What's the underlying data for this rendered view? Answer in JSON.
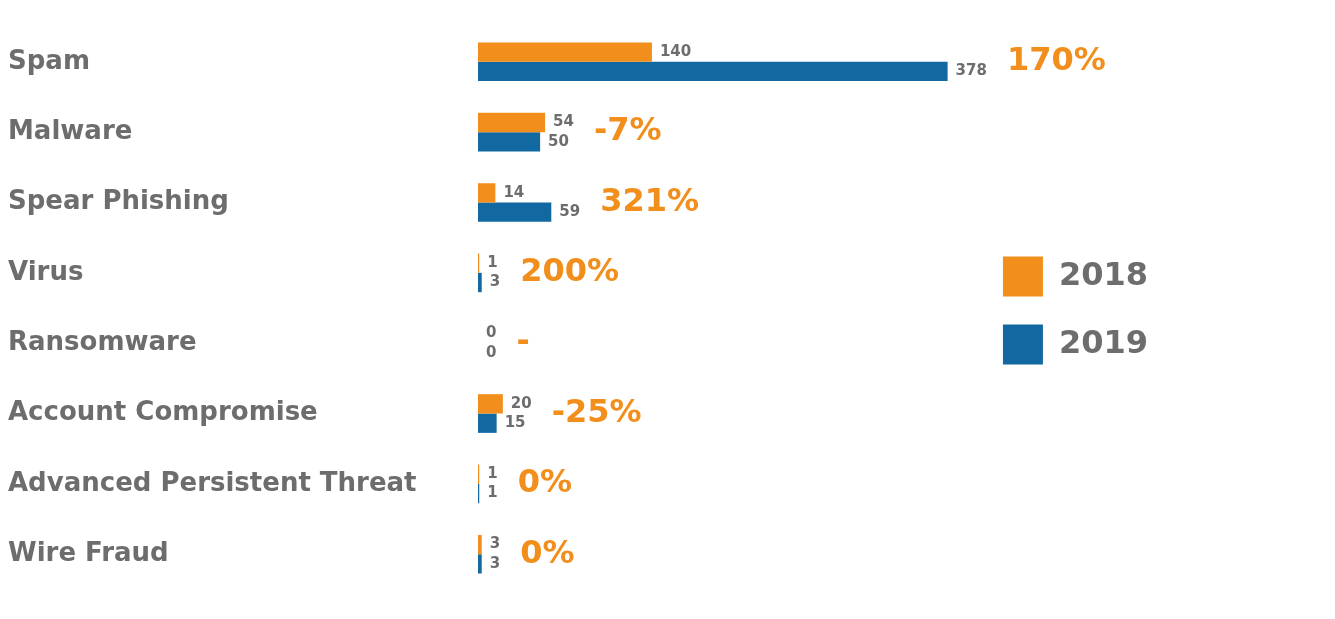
{
  "chart_data": {
    "type": "bar",
    "orientation": "horizontal",
    "categories": [
      "Spam",
      "Malware",
      "Spear Phishing",
      "Virus",
      "Ransomware",
      "Account Compromise",
      "Advanced Persistent Threat",
      "Wire Fraud"
    ],
    "series": [
      {
        "name": "2018",
        "color": "#f28e1c",
        "values": [
          140,
          54,
          14,
          1,
          0,
          20,
          1,
          3
        ]
      },
      {
        "name": "2019",
        "color": "#1269a2",
        "values": [
          378,
          50,
          59,
          3,
          0,
          15,
          1,
          3
        ]
      }
    ],
    "data_labels": true,
    "legend": "right",
    "annotations": [
      "170%",
      "-7%",
      "321%",
      "200%",
      "-",
      "-25%",
      "0%",
      "0%"
    ]
  }
}
